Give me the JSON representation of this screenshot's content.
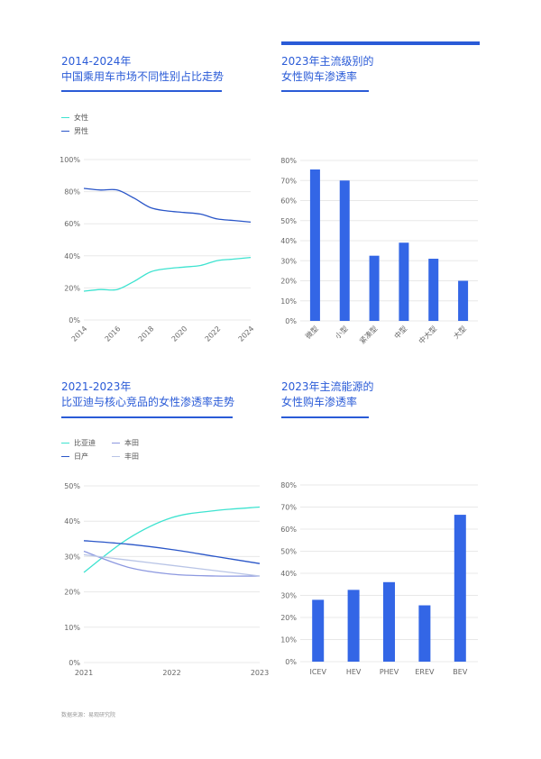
{
  "colors": {
    "accent": "#2a5bd7",
    "bar": "#3366e6",
    "cyan": "#3ee3d0",
    "navy": "#2a56c8",
    "honda": "#8c98e0",
    "toyota": "#b8c4e6",
    "grid": "#e8e8e8",
    "axis_text": "#666666"
  },
  "source_text": "数据来源：易观研究院",
  "chart_data": [
    {
      "id": "gender",
      "type": "line",
      "title_line1": "2014-2024年",
      "title_line2": "中国乘用车市场不同性别占比走势",
      "x": [
        2014,
        2015,
        2016,
        2017,
        2018,
        2019,
        2020,
        2021,
        2022,
        2023,
        2024
      ],
      "x_ticks": [
        "2014",
        "2016",
        "2018",
        "2020",
        "2022",
        "2024"
      ],
      "y_ticks": [
        "0%",
        "20%",
        "40%",
        "60%",
        "80%",
        "100%"
      ],
      "ylim": [
        0,
        100
      ],
      "xlim": [
        2014,
        2024
      ],
      "series": [
        {
          "name": "女性",
          "color_key": "cyan",
          "values": [
            18,
            19,
            19,
            24,
            30,
            32,
            33,
            34,
            37,
            38,
            39
          ]
        },
        {
          "name": "男性",
          "color_key": "navy",
          "values": [
            82,
            81,
            81,
            76,
            70,
            68,
            67,
            66,
            63,
            62,
            61
          ]
        }
      ]
    },
    {
      "id": "segment",
      "type": "bar",
      "title_line1": "2023年主流级别的",
      "title_line2": "女性购车渗透率",
      "categories": [
        "微型",
        "小型",
        "紧凑型",
        "中型",
        "中大型",
        "大型"
      ],
      "values": [
        75.5,
        70,
        32.5,
        39,
        31,
        20
      ],
      "y_ticks": [
        "0%",
        "10%",
        "20%",
        "30%",
        "40%",
        "50%",
        "60%",
        "70%",
        "80%"
      ],
      "ylim": [
        0,
        80
      ]
    },
    {
      "id": "brand",
      "type": "line",
      "title_line1": "2021-2023年",
      "title_line2": "比亚迪与核心竞品的女性渗透率走势",
      "x": [
        2021,
        2021.5,
        2022,
        2022.5,
        2023
      ],
      "x_ticks": [
        "2021",
        "2022",
        "2023"
      ],
      "y_ticks": [
        "0%",
        "10%",
        "20%",
        "30%",
        "40%",
        "50%"
      ],
      "ylim": [
        0,
        50
      ],
      "xlim": [
        2021,
        2023
      ],
      "series": [
        {
          "name": "比亚迪",
          "color_key": "cyan",
          "values": [
            25.5,
            35,
            41,
            43,
            44
          ]
        },
        {
          "name": "本田",
          "color_key": "honda",
          "values": [
            31.5,
            27,
            25,
            24.5,
            24.5
          ]
        },
        {
          "name": "日产",
          "color_key": "navy",
          "values": [
            34.5,
            33.5,
            32,
            30,
            28
          ]
        },
        {
          "name": "丰田",
          "color_key": "toyota",
          "values": [
            30.5,
            29,
            27.5,
            26,
            24.5
          ]
        }
      ]
    },
    {
      "id": "energy",
      "type": "bar",
      "title_line1": "2023年主流能源的",
      "title_line2": "女性购车渗透率",
      "categories": [
        "ICEV",
        "HEV",
        "PHEV",
        "EREV",
        "BEV"
      ],
      "values": [
        28,
        32.5,
        36,
        25.5,
        66.5
      ],
      "y_ticks": [
        "0%",
        "10%",
        "20%",
        "30%",
        "40%",
        "50%",
        "60%",
        "70%",
        "80%"
      ],
      "ylim": [
        0,
        80
      ]
    }
  ]
}
